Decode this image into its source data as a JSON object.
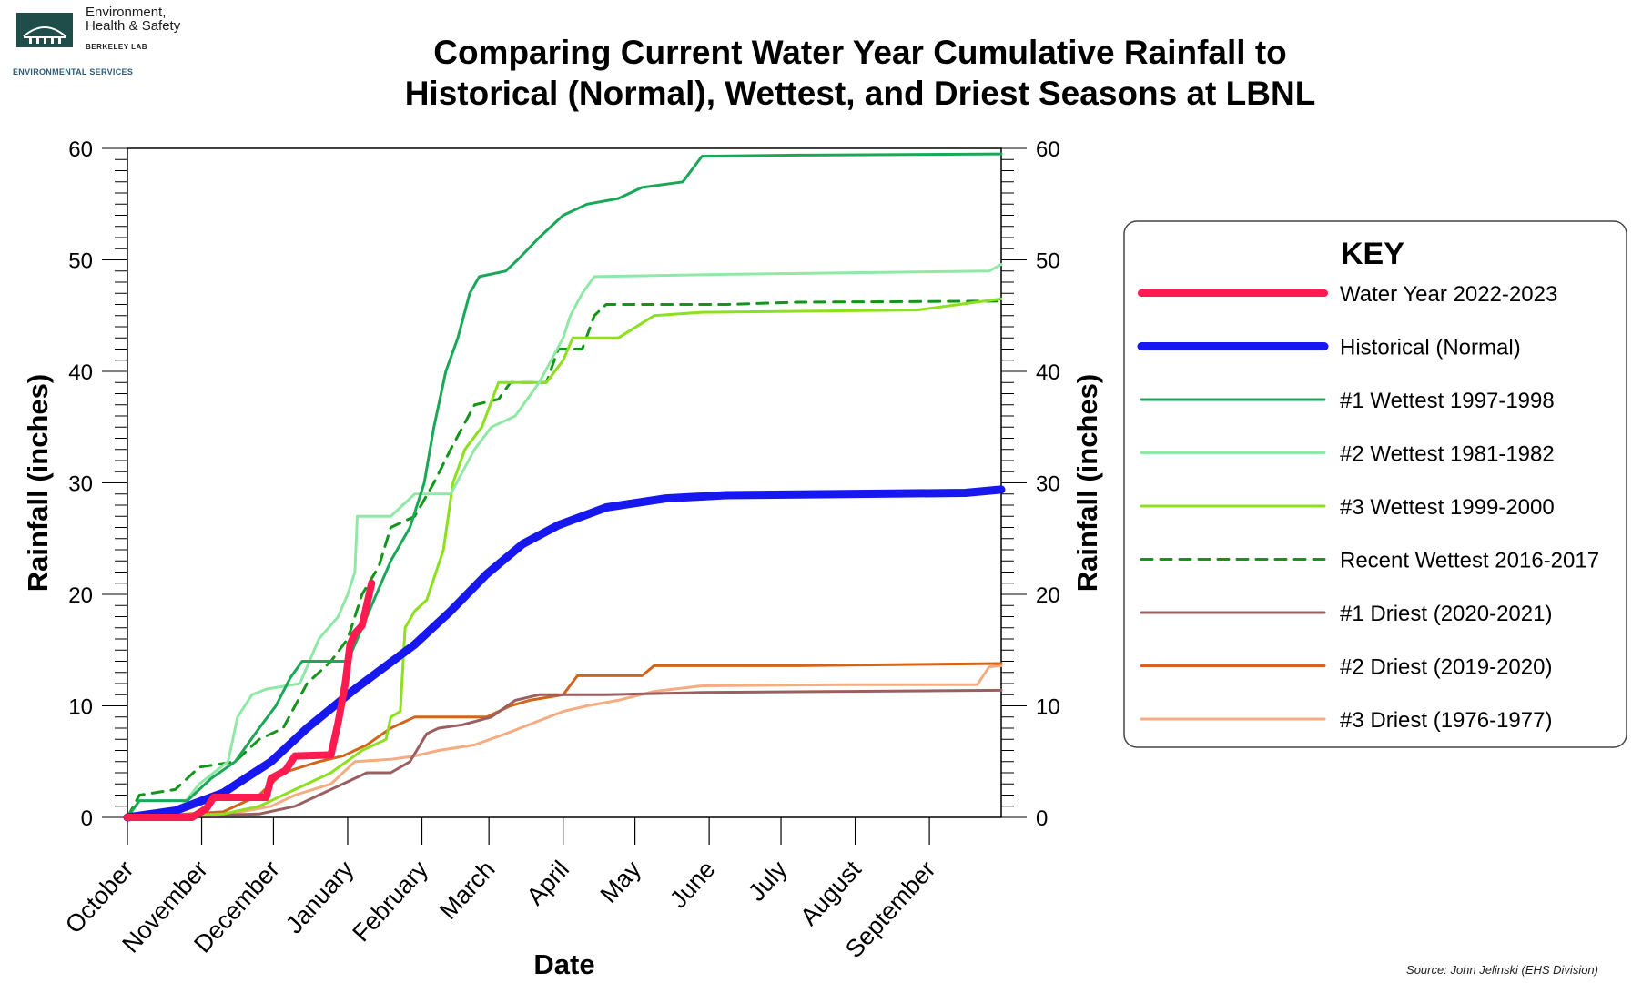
{
  "logo": {
    "line1": "Environment,",
    "line2": "Health & Safety",
    "line3": "BERKELEY LAB",
    "subtitle": "ENVIRONMENTAL SERVICES"
  },
  "source": "Source: John Jelinski (EHS Division)",
  "chart_data": {
    "type": "line",
    "title_lines": [
      "Comparing Current Water Year Cumulative Rainfall to",
      "Historical (Normal), Wettest, and Driest Seasons at LBNL"
    ],
    "xlabel": "Date",
    "ylabel": "Rainfall (inches)",
    "ylabel_right": "Rainfall (inches)",
    "ylim": [
      0,
      60
    ],
    "yticks": [
      0,
      10,
      20,
      30,
      40,
      50,
      60
    ],
    "xlim_days": [
      0,
      365
    ],
    "months": [
      {
        "label": "October",
        "day": 0
      },
      {
        "label": "November",
        "day": 31
      },
      {
        "label": "December",
        "day": 61
      },
      {
        "label": "January",
        "day": 92
      },
      {
        "label": "February",
        "day": 123
      },
      {
        "label": "March",
        "day": 151
      },
      {
        "label": "April",
        "day": 182
      },
      {
        "label": "May",
        "day": 212
      },
      {
        "label": "June",
        "day": 243
      },
      {
        "label": "July",
        "day": 273
      },
      {
        "label": "August",
        "day": 304
      },
      {
        "label": "September",
        "day": 335
      }
    ],
    "legend_title": "KEY",
    "legend_position": "right",
    "series": [
      {
        "name": "Water Year 2022-2023",
        "color": "#ff1a4f",
        "width": 8,
        "dash": "",
        "points": [
          [
            0,
            0
          ],
          [
            27,
            0
          ],
          [
            33,
            0.8
          ],
          [
            36,
            1.8
          ],
          [
            58,
            1.8
          ],
          [
            60,
            3.5
          ],
          [
            66,
            4.2
          ],
          [
            70,
            5.5
          ],
          [
            85,
            5.6
          ],
          [
            88,
            8.5
          ],
          [
            91,
            12
          ],
          [
            93,
            15.5
          ],
          [
            95,
            16.5
          ],
          [
            98,
            17.2
          ],
          [
            101,
            20
          ],
          [
            102,
            21
          ]
        ]
      },
      {
        "name": "Historical (Normal)",
        "color": "#1717f0",
        "width": 9,
        "dash": "",
        "points": [
          [
            0,
            0
          ],
          [
            20,
            0.6
          ],
          [
            40,
            2.2
          ],
          [
            60,
            5
          ],
          [
            75,
            8
          ],
          [
            95,
            11.5
          ],
          [
            120,
            15.5
          ],
          [
            135,
            18.5
          ],
          [
            150,
            21.8
          ],
          [
            165,
            24.5
          ],
          [
            180,
            26.2
          ],
          [
            200,
            27.8
          ],
          [
            225,
            28.6
          ],
          [
            250,
            28.9
          ],
          [
            300,
            29.0
          ],
          [
            350,
            29.1
          ],
          [
            365,
            29.4
          ]
        ]
      },
      {
        "name": "#1 Wettest 1997-1998",
        "color": "#1aa858",
        "width": 3,
        "dash": "",
        "points": [
          [
            0,
            0
          ],
          [
            5,
            1.5
          ],
          [
            25,
            1.5
          ],
          [
            35,
            3.5
          ],
          [
            45,
            5
          ],
          [
            55,
            8
          ],
          [
            62,
            10
          ],
          [
            68,
            12.5
          ],
          [
            73,
            14
          ],
          [
            92,
            14
          ],
          [
            98,
            17
          ],
          [
            104,
            20
          ],
          [
            110,
            23
          ],
          [
            118,
            26
          ],
          [
            124,
            30
          ],
          [
            128,
            35
          ],
          [
            133,
            40
          ],
          [
            138,
            43
          ],
          [
            143,
            47
          ],
          [
            147,
            48.5
          ],
          [
            158,
            49
          ],
          [
            163,
            50
          ],
          [
            172,
            52
          ],
          [
            182,
            54
          ],
          [
            192,
            55
          ],
          [
            205,
            55.5
          ],
          [
            215,
            56.5
          ],
          [
            232,
            57
          ],
          [
            240,
            59.3
          ],
          [
            280,
            59.4
          ],
          [
            365,
            59.5
          ]
        ]
      },
      {
        "name": "#2 Wettest 1981-1982",
        "color": "#8fe8a6",
        "width": 3,
        "dash": "",
        "points": [
          [
            0,
            0
          ],
          [
            20,
            0.3
          ],
          [
            30,
            3
          ],
          [
            42,
            5
          ],
          [
            46,
            9
          ],
          [
            52,
            11
          ],
          [
            58,
            11.5
          ],
          [
            72,
            12
          ],
          [
            80,
            16
          ],
          [
            88,
            18
          ],
          [
            92,
            20
          ],
          [
            95,
            22
          ],
          [
            96,
            27
          ],
          [
            110,
            27
          ],
          [
            115,
            28
          ],
          [
            120,
            29
          ],
          [
            135,
            29
          ],
          [
            140,
            31
          ],
          [
            145,
            33
          ],
          [
            152,
            35
          ],
          [
            162,
            36
          ],
          [
            172,
            39
          ],
          [
            182,
            43
          ],
          [
            185,
            45
          ],
          [
            190,
            47
          ],
          [
            195,
            48.5
          ],
          [
            250,
            48.7
          ],
          [
            360,
            49
          ],
          [
            365,
            49.6
          ]
        ]
      },
      {
        "name": "#3 Wettest 1999-2000",
        "color": "#8ce01e",
        "width": 3,
        "dash": "",
        "points": [
          [
            0,
            0
          ],
          [
            40,
            0.3
          ],
          [
            55,
            1
          ],
          [
            70,
            2.5
          ],
          [
            85,
            4
          ],
          [
            98,
            6
          ],
          [
            108,
            7
          ],
          [
            110,
            9
          ],
          [
            114,
            9.5
          ],
          [
            116,
            17
          ],
          [
            120,
            18.5
          ],
          [
            125,
            19.5
          ],
          [
            132,
            24
          ],
          [
            136,
            30
          ],
          [
            141,
            33
          ],
          [
            148,
            35
          ],
          [
            155,
            39
          ],
          [
            168,
            39
          ],
          [
            175,
            39
          ],
          [
            182,
            41
          ],
          [
            186,
            43
          ],
          [
            205,
            43
          ],
          [
            220,
            45
          ],
          [
            240,
            45.3
          ],
          [
            330,
            45.5
          ],
          [
            365,
            46.5
          ]
        ]
      },
      {
        "name": "Recent Wettest 2016-2017",
        "color": "#13941a",
        "width": 3,
        "dash": "12,9",
        "points": [
          [
            0,
            0
          ],
          [
            5,
            2
          ],
          [
            20,
            2.5
          ],
          [
            30,
            4.5
          ],
          [
            45,
            5
          ],
          [
            55,
            7
          ],
          [
            65,
            8
          ],
          [
            75,
            12
          ],
          [
            85,
            14
          ],
          [
            92,
            16
          ],
          [
            98,
            20
          ],
          [
            105,
            22.5
          ],
          [
            110,
            26
          ],
          [
            120,
            27
          ],
          [
            128,
            30
          ],
          [
            135,
            33
          ],
          [
            140,
            35
          ],
          [
            145,
            37
          ],
          [
            155,
            37.5
          ],
          [
            160,
            39
          ],
          [
            175,
            39
          ],
          [
            180,
            42
          ],
          [
            190,
            42
          ],
          [
            195,
            45
          ],
          [
            200,
            46
          ],
          [
            250,
            46
          ],
          [
            280,
            46.2
          ],
          [
            365,
            46.3
          ]
        ]
      },
      {
        "name": "#1 Driest (2020-2021)",
        "color": "#9a5f60",
        "width": 3,
        "dash": "",
        "points": [
          [
            0,
            0
          ],
          [
            55,
            0.3
          ],
          [
            70,
            1
          ],
          [
            80,
            2
          ],
          [
            90,
            3
          ],
          [
            100,
            4
          ],
          [
            110,
            4
          ],
          [
            118,
            5
          ],
          [
            125,
            7.5
          ],
          [
            130,
            8
          ],
          [
            140,
            8.3
          ],
          [
            152,
            9
          ],
          [
            162,
            10.5
          ],
          [
            172,
            11
          ],
          [
            200,
            11
          ],
          [
            240,
            11.2
          ],
          [
            300,
            11.3
          ],
          [
            365,
            11.4
          ]
        ]
      },
      {
        "name": "#2 Driest (2019-2020)",
        "color": "#d2641b",
        "width": 3,
        "dash": "",
        "points": [
          [
            0,
            0
          ],
          [
            40,
            0.5
          ],
          [
            55,
            2
          ],
          [
            60,
            3
          ],
          [
            65,
            4
          ],
          [
            80,
            5
          ],
          [
            90,
            5.5
          ],
          [
            100,
            6.5
          ],
          [
            110,
            8
          ],
          [
            120,
            9
          ],
          [
            140,
            9
          ],
          [
            150,
            9
          ],
          [
            160,
            10
          ],
          [
            168,
            10.5
          ],
          [
            182,
            11
          ],
          [
            188,
            12.7
          ],
          [
            215,
            12.7
          ],
          [
            220,
            13.6
          ],
          [
            280,
            13.6
          ],
          [
            365,
            13.8
          ]
        ]
      },
      {
        "name": "#3 Driest (1976-1977)",
        "color": "#f7ab80",
        "width": 3,
        "dash": "",
        "points": [
          [
            0,
            0
          ],
          [
            40,
            0.2
          ],
          [
            60,
            1
          ],
          [
            70,
            2
          ],
          [
            85,
            3
          ],
          [
            95,
            5
          ],
          [
            110,
            5.2
          ],
          [
            120,
            5.5
          ],
          [
            130,
            6
          ],
          [
            145,
            6.5
          ],
          [
            158,
            7.5
          ],
          [
            170,
            8.5
          ],
          [
            182,
            9.5
          ],
          [
            192,
            10
          ],
          [
            205,
            10.5
          ],
          [
            220,
            11.3
          ],
          [
            240,
            11.8
          ],
          [
            300,
            11.9
          ],
          [
            355,
            11.9
          ],
          [
            360,
            13.5
          ],
          [
            365,
            13.6
          ]
        ]
      }
    ]
  }
}
